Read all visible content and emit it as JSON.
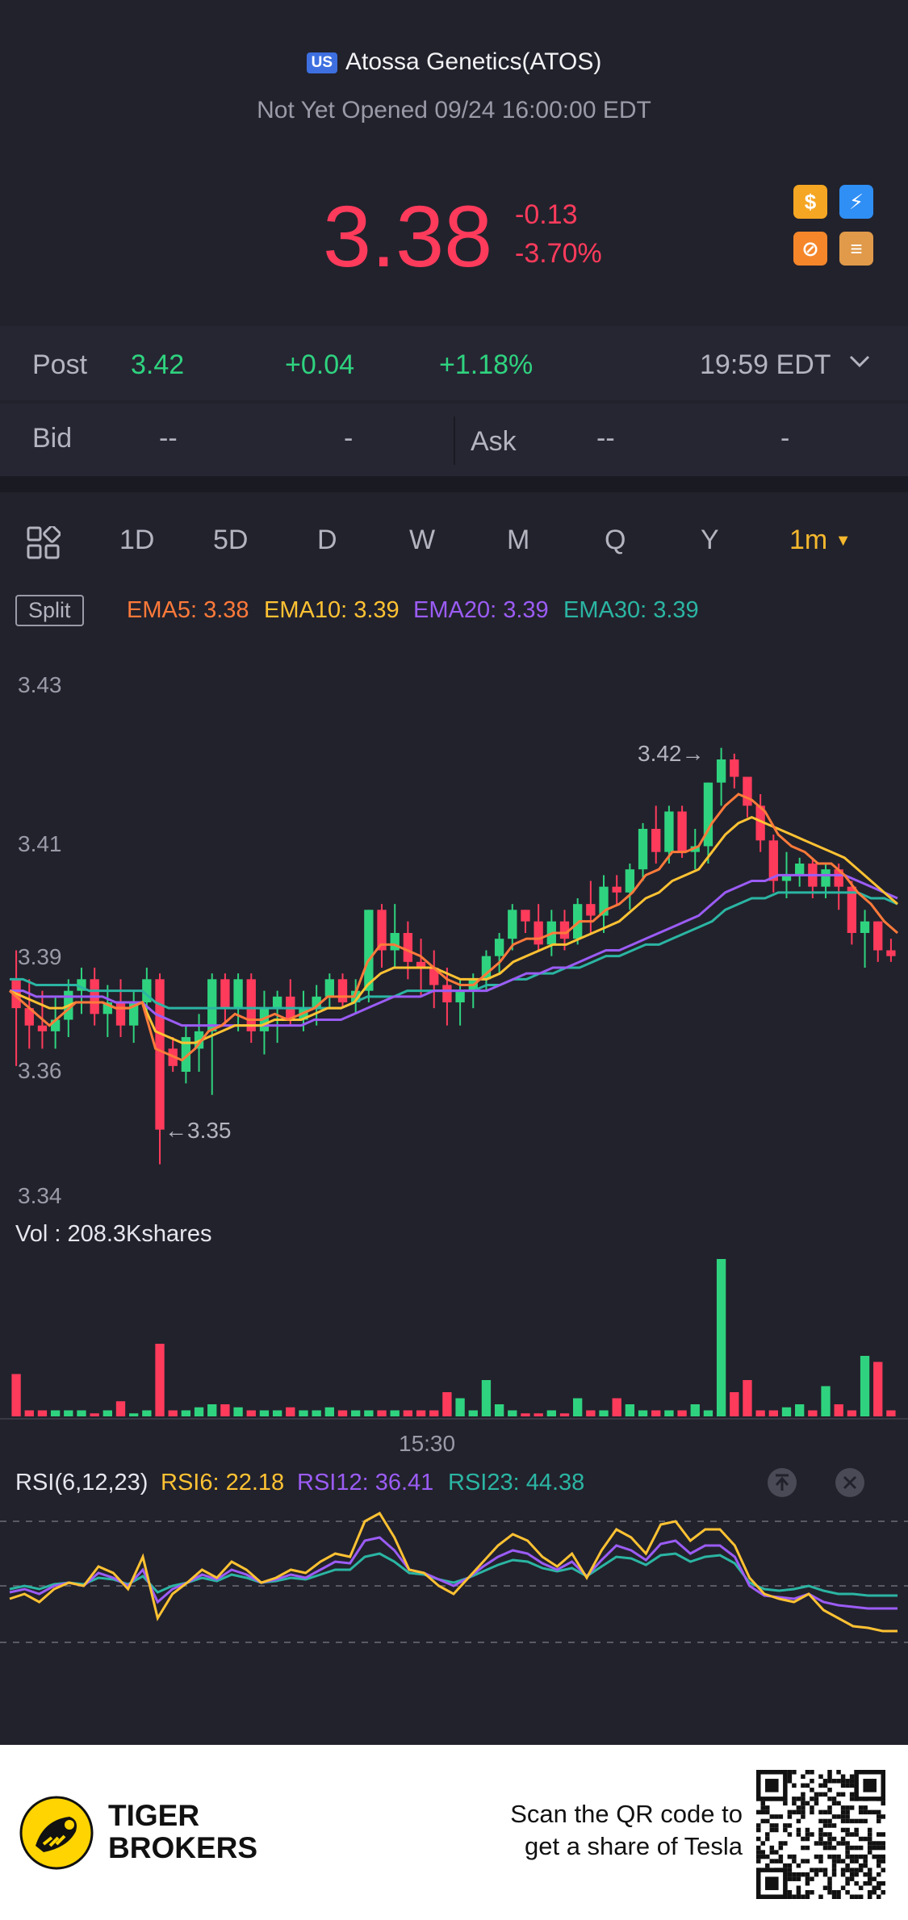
{
  "header": {
    "market_badge": "US",
    "stock_title": "Atossa Genetics(ATOS)",
    "status": "Not Yet Opened 09/24 16:00:00 EDT",
    "price": "3.38",
    "change": "-0.13",
    "change_pct": "-3.70%",
    "badge_icons": [
      "dollar-icon",
      "lightning-icon",
      "no-short-icon",
      "stack-icon"
    ],
    "badge_icon_glyphs": [
      "$",
      "⚡",
      "⊘",
      "≡"
    ],
    "colors": {
      "down": "#ff3b5c",
      "up": "#2fd37f"
    }
  },
  "post": {
    "label": "Post",
    "price": "3.42",
    "change": "+0.04",
    "change_pct": "+1.18%",
    "time": "19:59 EDT"
  },
  "quote": {
    "bid_label": "Bid",
    "bid_price": "--",
    "bid_size": "-",
    "ask_label": "Ask",
    "ask_price": "--",
    "ask_size": "-"
  },
  "timeframes": [
    "1D",
    "5D",
    "D",
    "W",
    "M",
    "Q",
    "Y"
  ],
  "timeframe_selected": "1m",
  "indicators": {
    "split_label": "Split",
    "ema5": "EMA5: 3.38",
    "ema10": "EMA10: 3.39",
    "ema20": "EMA20: 3.39",
    "ema30": "EMA30: 3.39",
    "colors": {
      "ema5": "#ff7a3a",
      "ema10": "#ffc233",
      "ema20": "#9b5cf5",
      "ema30": "#2bb5a3"
    }
  },
  "chart_data": {
    "type": "candlestick",
    "y_ticks": [
      "3.43",
      "3.41",
      "3.39",
      "3.36",
      "3.34"
    ],
    "y_tick_values": [
      3.43,
      3.41,
      3.39,
      3.36,
      3.34
    ],
    "high_marker": "3.42",
    "low_marker": "3.35",
    "x_label": "15:30",
    "candles": [
      {
        "o": 3.38,
        "h": 3.385,
        "l": 3.365,
        "c": 3.375
      },
      {
        "o": 3.375,
        "h": 3.38,
        "l": 3.368,
        "c": 3.372
      },
      {
        "o": 3.372,
        "h": 3.378,
        "l": 3.368,
        "c": 3.371
      },
      {
        "o": 3.371,
        "h": 3.377,
        "l": 3.368,
        "c": 3.373
      },
      {
        "o": 3.373,
        "h": 3.38,
        "l": 3.37,
        "c": 3.378
      },
      {
        "o": 3.378,
        "h": 3.382,
        "l": 3.374,
        "c": 3.38
      },
      {
        "o": 3.38,
        "h": 3.382,
        "l": 3.372,
        "c": 3.374
      },
      {
        "o": 3.374,
        "h": 3.379,
        "l": 3.37,
        "c": 3.376
      },
      {
        "o": 3.376,
        "h": 3.38,
        "l": 3.37,
        "c": 3.372
      },
      {
        "o": 3.372,
        "h": 3.378,
        "l": 3.369,
        "c": 3.376
      },
      {
        "o": 3.376,
        "h": 3.382,
        "l": 3.373,
        "c": 3.38
      },
      {
        "o": 3.38,
        "h": 3.381,
        "l": 3.348,
        "c": 3.354
      },
      {
        "o": 3.368,
        "h": 3.37,
        "l": 3.364,
        "c": 3.365
      },
      {
        "o": 3.364,
        "h": 3.372,
        "l": 3.362,
        "c": 3.37
      },
      {
        "o": 3.368,
        "h": 3.374,
        "l": 3.364,
        "c": 3.371
      },
      {
        "o": 3.371,
        "h": 3.381,
        "l": 3.36,
        "c": 3.38
      },
      {
        "o": 3.38,
        "h": 3.381,
        "l": 3.372,
        "c": 3.375
      },
      {
        "o": 3.375,
        "h": 3.381,
        "l": 3.371,
        "c": 3.38
      },
      {
        "o": 3.38,
        "h": 3.381,
        "l": 3.369,
        "c": 3.371
      },
      {
        "o": 3.371,
        "h": 3.378,
        "l": 3.367,
        "c": 3.375
      },
      {
        "o": 3.375,
        "h": 3.378,
        "l": 3.369,
        "c": 3.377
      },
      {
        "o": 3.377,
        "h": 3.38,
        "l": 3.372,
        "c": 3.373
      },
      {
        "o": 3.373,
        "h": 3.378,
        "l": 3.371,
        "c": 3.375
      },
      {
        "o": 3.375,
        "h": 3.379,
        "l": 3.372,
        "c": 3.377
      },
      {
        "o": 3.377,
        "h": 3.381,
        "l": 3.375,
        "c": 3.38
      },
      {
        "o": 3.38,
        "h": 3.381,
        "l": 3.375,
        "c": 3.376
      },
      {
        "o": 3.376,
        "h": 3.38,
        "l": 3.374,
        "c": 3.378
      },
      {
        "o": 3.378,
        "h": 3.392,
        "l": 3.376,
        "c": 3.392
      },
      {
        "o": 3.392,
        "h": 3.393,
        "l": 3.382,
        "c": 3.385
      },
      {
        "o": 3.385,
        "h": 3.393,
        "l": 3.382,
        "c": 3.388
      },
      {
        "o": 3.388,
        "h": 3.39,
        "l": 3.38,
        "c": 3.383
      },
      {
        "o": 3.383,
        "h": 3.387,
        "l": 3.377,
        "c": 3.382
      },
      {
        "o": 3.382,
        "h": 3.385,
        "l": 3.375,
        "c": 3.379
      },
      {
        "o": 3.379,
        "h": 3.382,
        "l": 3.372,
        "c": 3.376
      },
      {
        "o": 3.376,
        "h": 3.38,
        "l": 3.372,
        "c": 3.378
      },
      {
        "o": 3.378,
        "h": 3.381,
        "l": 3.375,
        "c": 3.38
      },
      {
        "o": 3.38,
        "h": 3.385,
        "l": 3.378,
        "c": 3.384
      },
      {
        "o": 3.384,
        "h": 3.388,
        "l": 3.381,
        "c": 3.387
      },
      {
        "o": 3.387,
        "h": 3.393,
        "l": 3.385,
        "c": 3.392
      },
      {
        "o": 3.392,
        "h": 3.392,
        "l": 3.388,
        "c": 3.39
      },
      {
        "o": 3.39,
        "h": 3.393,
        "l": 3.385,
        "c": 3.386
      },
      {
        "o": 3.386,
        "h": 3.392,
        "l": 3.384,
        "c": 3.39
      },
      {
        "o": 3.39,
        "h": 3.392,
        "l": 3.385,
        "c": 3.387
      },
      {
        "o": 3.387,
        "h": 3.394,
        "l": 3.386,
        "c": 3.393
      },
      {
        "o": 3.393,
        "h": 3.397,
        "l": 3.388,
        "c": 3.391
      },
      {
        "o": 3.391,
        "h": 3.398,
        "l": 3.388,
        "c": 3.396
      },
      {
        "o": 3.396,
        "h": 3.398,
        "l": 3.393,
        "c": 3.395
      },
      {
        "o": 3.395,
        "h": 3.4,
        "l": 3.392,
        "c": 3.399
      },
      {
        "o": 3.399,
        "h": 3.407,
        "l": 3.397,
        "c": 3.406
      },
      {
        "o": 3.406,
        "h": 3.41,
        "l": 3.4,
        "c": 3.402
      },
      {
        "o": 3.402,
        "h": 3.41,
        "l": 3.4,
        "c": 3.409
      },
      {
        "o": 3.409,
        "h": 3.41,
        "l": 3.401,
        "c": 3.402
      },
      {
        "o": 3.402,
        "h": 3.406,
        "l": 3.399,
        "c": 3.403
      },
      {
        "o": 3.403,
        "h": 3.414,
        "l": 3.4,
        "c": 3.414
      },
      {
        "o": 3.414,
        "h": 3.42,
        "l": 3.41,
        "c": 3.418
      },
      {
        "o": 3.418,
        "h": 3.419,
        "l": 3.413,
        "c": 3.415
      },
      {
        "o": 3.415,
        "h": 3.415,
        "l": 3.408,
        "c": 3.41
      },
      {
        "o": 3.41,
        "h": 3.412,
        "l": 3.402,
        "c": 3.404
      },
      {
        "o": 3.404,
        "h": 3.405,
        "l": 3.395,
        "c": 3.397
      },
      {
        "o": 3.397,
        "h": 3.402,
        "l": 3.394,
        "c": 3.398
      },
      {
        "o": 3.398,
        "h": 3.401,
        "l": 3.396,
        "c": 3.4
      },
      {
        "o": 3.4,
        "h": 3.401,
        "l": 3.394,
        "c": 3.396
      },
      {
        "o": 3.396,
        "h": 3.4,
        "l": 3.394,
        "c": 3.399
      },
      {
        "o": 3.399,
        "h": 3.4,
        "l": 3.392,
        "c": 3.396
      },
      {
        "o": 3.396,
        "h": 3.397,
        "l": 3.386,
        "c": 3.388
      },
      {
        "o": 3.388,
        "h": 3.392,
        "l": 3.382,
        "c": 3.39
      },
      {
        "o": 3.39,
        "h": 3.39,
        "l": 3.383,
        "c": 3.385
      },
      {
        "o": 3.385,
        "h": 3.387,
        "l": 3.383,
        "c": 3.384
      }
    ],
    "ema5": [
      3.378,
      3.376,
      3.374,
      3.372,
      3.374,
      3.376,
      3.376,
      3.376,
      3.375,
      3.375,
      3.376,
      3.368,
      3.367,
      3.366,
      3.368,
      3.371,
      3.372,
      3.374,
      3.373,
      3.373,
      3.374,
      3.373,
      3.374,
      3.375,
      3.377,
      3.377,
      3.377,
      3.383,
      3.386,
      3.386,
      3.385,
      3.384,
      3.382,
      3.38,
      3.379,
      3.379,
      3.381,
      3.383,
      3.386,
      3.387,
      3.387,
      3.388,
      3.388,
      3.39,
      3.39,
      3.392,
      3.393,
      3.395,
      3.398,
      3.399,
      3.402,
      3.402,
      3.403,
      3.407,
      3.41,
      3.412,
      3.411,
      3.409,
      3.405,
      3.403,
      3.402,
      3.4,
      3.4,
      3.398,
      3.395,
      3.393,
      3.39,
      3.388
    ],
    "ema10": [
      3.378,
      3.377,
      3.376,
      3.375,
      3.375,
      3.376,
      3.376,
      3.376,
      3.375,
      3.375,
      3.376,
      3.371,
      3.37,
      3.369,
      3.369,
      3.37,
      3.371,
      3.372,
      3.372,
      3.372,
      3.373,
      3.373,
      3.373,
      3.374,
      3.375,
      3.375,
      3.376,
      3.379,
      3.381,
      3.382,
      3.382,
      3.382,
      3.382,
      3.381,
      3.38,
      3.38,
      3.38,
      3.381,
      3.383,
      3.384,
      3.385,
      3.386,
      3.386,
      3.387,
      3.388,
      3.389,
      3.39,
      3.392,
      3.394,
      3.395,
      3.397,
      3.398,
      3.399,
      3.402,
      3.405,
      3.407,
      3.408,
      3.407,
      3.406,
      3.405,
      3.404,
      3.403,
      3.402,
      3.401,
      3.399,
      3.397,
      3.395,
      3.393
    ],
    "ema20": [
      3.378,
      3.378,
      3.377,
      3.377,
      3.377,
      3.377,
      3.377,
      3.377,
      3.376,
      3.376,
      3.376,
      3.374,
      3.373,
      3.372,
      3.372,
      3.372,
      3.372,
      3.372,
      3.372,
      3.372,
      3.372,
      3.372,
      3.372,
      3.373,
      3.373,
      3.373,
      3.374,
      3.375,
      3.376,
      3.377,
      3.377,
      3.377,
      3.378,
      3.378,
      3.378,
      3.378,
      3.378,
      3.379,
      3.38,
      3.381,
      3.381,
      3.382,
      3.382,
      3.383,
      3.384,
      3.385,
      3.385,
      3.386,
      3.387,
      3.388,
      3.389,
      3.39,
      3.391,
      3.393,
      3.395,
      3.396,
      3.397,
      3.397,
      3.398,
      3.398,
      3.398,
      3.398,
      3.398,
      3.398,
      3.397,
      3.396,
      3.395,
      3.394
    ],
    "ema30": [
      3.38,
      3.38,
      3.379,
      3.379,
      3.379,
      3.379,
      3.378,
      3.378,
      3.378,
      3.378,
      3.378,
      3.376,
      3.375,
      3.375,
      3.375,
      3.375,
      3.375,
      3.375,
      3.375,
      3.375,
      3.375,
      3.375,
      3.375,
      3.375,
      3.375,
      3.375,
      3.376,
      3.377,
      3.377,
      3.377,
      3.378,
      3.378,
      3.378,
      3.378,
      3.378,
      3.378,
      3.379,
      3.379,
      3.38,
      3.38,
      3.381,
      3.381,
      3.382,
      3.382,
      3.383,
      3.384,
      3.384,
      3.385,
      3.386,
      3.386,
      3.387,
      3.388,
      3.389,
      3.39,
      3.392,
      3.393,
      3.394,
      3.394,
      3.395,
      3.395,
      3.395,
      3.395,
      3.395,
      3.395,
      3.395,
      3.394,
      3.394,
      3.393
    ],
    "volume_label": "Vol  : 208.3Kshares",
    "volumes": [
      7,
      1,
      1,
      1,
      1,
      1,
      0.5,
      1,
      2.5,
      0.5,
      1,
      12,
      1,
      1,
      1.5,
      2,
      2,
      1.5,
      1,
      1,
      1,
      1.5,
      1,
      1,
      1.5,
      1,
      1,
      1,
      1,
      1,
      1,
      1,
      1,
      4,
      3,
      1,
      6,
      2,
      1,
      0.5,
      0.5,
      1,
      0.5,
      3,
      1,
      1,
      3,
      2,
      1,
      1,
      1,
      1,
      2,
      1,
      26,
      4,
      6,
      1,
      1,
      1.5,
      2,
      1,
      5,
      2,
      1,
      10,
      9,
      1
    ],
    "rsi_label": "RSI(6,12,23)",
    "rsi6_label": "RSI6: 22.18",
    "rsi12_label": "RSI12: 36.41",
    "rsi23_label": "RSI23: 44.38",
    "rsi6": [
      42,
      45,
      40,
      48,
      52,
      50,
      62,
      58,
      48,
      68,
      30,
      45,
      52,
      60,
      55,
      65,
      60,
      52,
      55,
      60,
      58,
      65,
      70,
      68,
      90,
      95,
      80,
      60,
      58,
      50,
      45,
      55,
      65,
      75,
      82,
      78,
      68,
      62,
      70,
      55,
      72,
      85,
      80,
      70,
      88,
      90,
      78,
      85,
      85,
      75,
      55,
      45,
      42,
      40,
      45,
      35,
      30,
      25,
      24,
      22,
      22
    ],
    "rsi12": [
      46,
      48,
      45,
      50,
      52,
      50,
      58,
      55,
      50,
      60,
      40,
      48,
      52,
      57,
      54,
      60,
      57,
      52,
      54,
      57,
      55,
      60,
      65,
      64,
      78,
      80,
      72,
      60,
      58,
      54,
      50,
      55,
      62,
      68,
      72,
      70,
      64,
      60,
      65,
      56,
      66,
      75,
      72,
      66,
      76,
      78,
      70,
      75,
      75,
      68,
      50,
      44,
      43,
      42,
      45,
      40,
      38,
      37,
      36,
      36,
      36
    ],
    "rsi23": [
      48,
      50,
      48,
      51,
      52,
      51,
      55,
      54,
      51,
      56,
      46,
      50,
      52,
      55,
      53,
      57,
      55,
      52,
      53,
      55,
      54,
      57,
      60,
      60,
      68,
      70,
      65,
      58,
      57,
      54,
      52,
      55,
      59,
      63,
      66,
      65,
      61,
      59,
      61,
      56,
      62,
      68,
      67,
      63,
      69,
      70,
      65,
      68,
      69,
      64,
      52,
      48,
      47,
      48,
      50,
      47,
      45,
      45,
      44,
      44,
      44
    ]
  },
  "footer": {
    "brand_line1": "TIGER",
    "brand_line2": "BROKERS",
    "cta_line1": "Scan the QR code to",
    "cta_line2": "get a share of Tesla"
  }
}
